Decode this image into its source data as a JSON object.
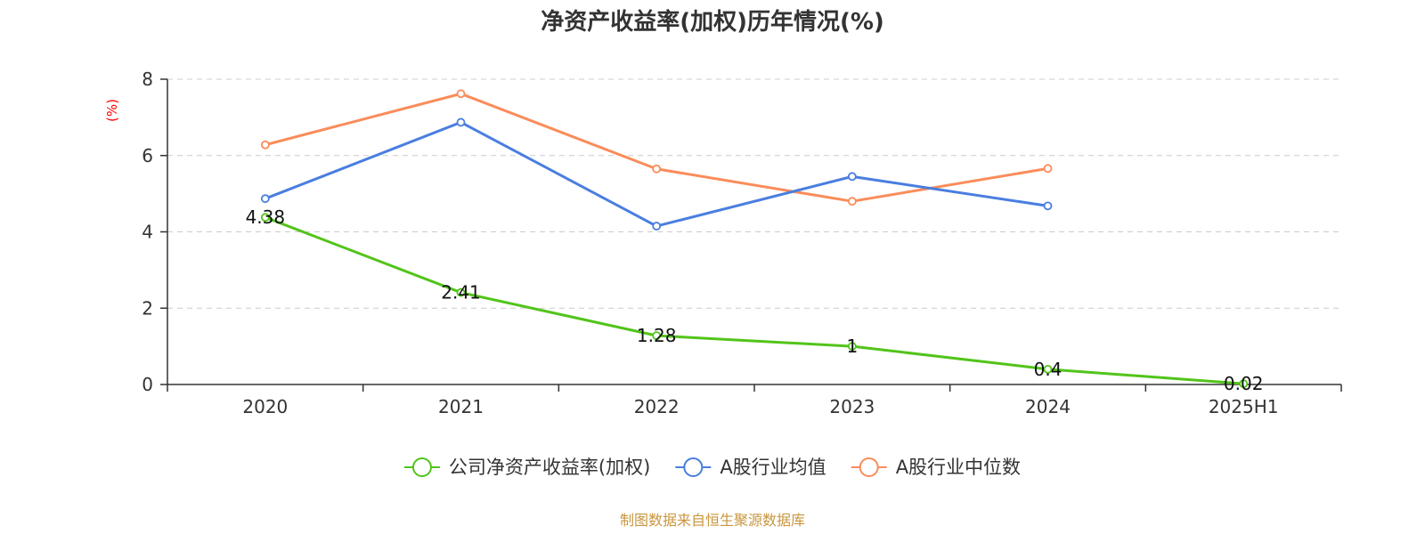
{
  "chart_data": {
    "type": "line",
    "title": "净资产收益率(加权)历年情况(%)",
    "ylabel": "(%)",
    "xlabel": "",
    "categories": [
      "2020",
      "2021",
      "2022",
      "2023",
      "2024",
      "2025H1"
    ],
    "ylim": [
      0,
      8
    ],
    "yticks": [
      0,
      2,
      4,
      6,
      8
    ],
    "grid": true,
    "legend_position": "bottom-center",
    "series": [
      {
        "name": "公司净资产收益率(加权)",
        "color": "#52c41a",
        "values": [
          4.38,
          2.41,
          1.28,
          1,
          0.4,
          0.02
        ],
        "show_labels": true
      },
      {
        "name": "A股行业均值",
        "color": "#4a7ee0",
        "values": [
          4.87,
          6.87,
          4.15,
          5.45,
          4.68,
          null
        ],
        "show_labels": false
      },
      {
        "name": "A股行业中位数",
        "color": "#fa8c5a",
        "values": [
          6.28,
          7.62,
          5.65,
          4.8,
          5.66,
          null
        ],
        "show_labels": false
      }
    ]
  },
  "source_note": "制图数据来自恒生聚源数据库"
}
